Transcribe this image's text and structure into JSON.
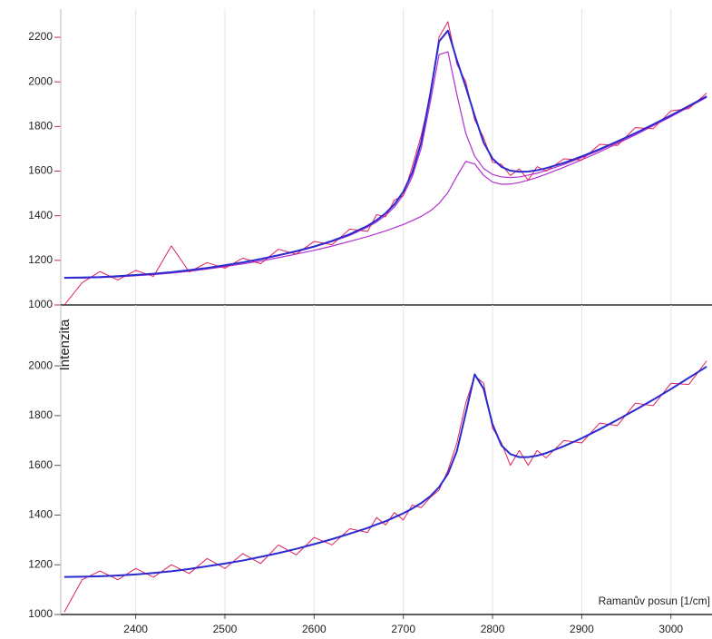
{
  "chart_data": [
    {
      "type": "line",
      "x": [
        2320,
        2340,
        2360,
        2380,
        2400,
        2420,
        2440,
        2460,
        2480,
        2500,
        2520,
        2540,
        2560,
        2580,
        2600,
        2620,
        2640,
        2660,
        2670,
        2680,
        2690,
        2700,
        2710,
        2720,
        2730,
        2740,
        2750,
        2760,
        2770,
        2780,
        2790,
        2800,
        2810,
        2820,
        2830,
        2840,
        2850,
        2860,
        2880,
        2900,
        2920,
        2940,
        2960,
        2980,
        3000,
        3020,
        3040
      ],
      "series": [
        {
          "color": "#b030d0",
          "width": 1.2,
          "values": [
            1122,
            1123,
            1125,
            1128,
            1133,
            1139,
            1146,
            1155,
            1165,
            1177,
            1190,
            1204,
            1221,
            1239,
            1260,
            1284,
            1312,
            1349,
            1372,
            1401,
            1439,
            1493,
            1574,
            1703,
            1904,
            2122,
            2135,
            1944,
            1769,
            1667,
            1612,
            1585,
            1574,
            1571,
            1574,
            1582,
            1591,
            1603,
            1630,
            1661,
            1694,
            1730,
            1768,
            1807,
            1848,
            1891,
            1934
          ]
        },
        {
          "color": "#b030d0",
          "width": 1.2,
          "values": [
            1120,
            1121,
            1123,
            1126,
            1131,
            1136,
            1143,
            1151,
            1161,
            1172,
            1184,
            1197,
            1212,
            1228,
            1245,
            1264,
            1285,
            1307,
            1319,
            1332,
            1346,
            1361,
            1378,
            1397,
            1421,
            1455,
            1504,
            1577,
            1644,
            1632,
            1581,
            1551,
            1541,
            1542,
            1549,
            1559,
            1572,
            1586,
            1617,
            1651,
            1686,
            1724,
            1762,
            1803,
            1844,
            1887,
            1931
          ]
        },
        {
          "color": "#e0205a",
          "width": 1,
          "values": [
            1000,
            1100,
            1150,
            1112,
            1155,
            1128,
            1265,
            1148,
            1190,
            1165,
            1210,
            1185,
            1250,
            1228,
            1285,
            1270,
            1340,
            1330,
            1405,
            1395,
            1470,
            1490,
            1620,
            1760,
            1930,
            2200,
            2270,
            2080,
            2000,
            1830,
            1750,
            1640,
            1630,
            1580,
            1610,
            1560,
            1620,
            1600,
            1655,
            1650,
            1720,
            1715,
            1795,
            1790,
            1870,
            1880,
            1950
          ]
        },
        {
          "color": "#2a2ad0",
          "width": 2,
          "values": [
            1122,
            1123,
            1125,
            1129,
            1134,
            1140,
            1147,
            1156,
            1166,
            1178,
            1191,
            1206,
            1223,
            1241,
            1262,
            1287,
            1317,
            1355,
            1380,
            1411,
            1451,
            1508,
            1593,
            1730,
            1942,
            2181,
            2230,
            2098,
            1977,
            1848,
            1728,
            1656,
            1619,
            1602,
            1597,
            1598,
            1604,
            1613,
            1637,
            1666,
            1698,
            1733,
            1770,
            1809,
            1850,
            1892,
            1935
          ]
        }
      ],
      "xlim": [
        2316,
        3046
      ],
      "ylim": [
        1000,
        2306
      ],
      "xticks": [
        2400,
        2500,
        2600,
        2700,
        2800,
        2900,
        3000
      ],
      "xtick_labels": false,
      "yticks": [
        1000,
        1200,
        1400,
        1600,
        1800,
        2000,
        2200
      ],
      "grid": true
    },
    {
      "type": "line",
      "x_label": "Ramanův posun [1/cm]",
      "y_label": "Intenzita",
      "x": [
        2320,
        2340,
        2360,
        2380,
        2400,
        2420,
        2440,
        2460,
        2480,
        2500,
        2520,
        2540,
        2560,
        2580,
        2600,
        2620,
        2640,
        2660,
        2670,
        2680,
        2690,
        2700,
        2710,
        2720,
        2730,
        2740,
        2750,
        2760,
        2770,
        2780,
        2790,
        2800,
        2810,
        2820,
        2830,
        2840,
        2850,
        2860,
        2880,
        2900,
        2920,
        2940,
        2960,
        2980,
        3000,
        3020,
        3040
      ],
      "series": [
        {
          "color": "#e0205a",
          "width": 1,
          "values": [
            1010,
            1140,
            1175,
            1140,
            1185,
            1150,
            1200,
            1165,
            1225,
            1185,
            1245,
            1205,
            1280,
            1240,
            1310,
            1280,
            1345,
            1330,
            1390,
            1360,
            1410,
            1380,
            1440,
            1430,
            1470,
            1500,
            1580,
            1690,
            1850,
            1960,
            1930,
            1750,
            1690,
            1600,
            1660,
            1600,
            1660,
            1630,
            1700,
            1690,
            1770,
            1760,
            1850,
            1840,
            1930,
            1925,
            2020
          ]
        },
        {
          "color": "#2a2ad0",
          "width": 2,
          "values": [
            1151,
            1152,
            1154,
            1157,
            1161,
            1167,
            1174,
            1183,
            1194,
            1205,
            1217,
            1232,
            1247,
            1264,
            1283,
            1303,
            1325,
            1348,
            1362,
            1375,
            1391,
            1407,
            1426,
            1448,
            1475,
            1512,
            1566,
            1657,
            1810,
            1966,
            1908,
            1765,
            1680,
            1645,
            1633,
            1633,
            1639,
            1649,
            1677,
            1709,
            1745,
            1783,
            1823,
            1864,
            1907,
            1952,
            1997
          ]
        }
      ],
      "xlim": [
        2316,
        3046
      ],
      "ylim": [
        1000,
        2245
      ],
      "xticks": [
        2400,
        2500,
        2600,
        2700,
        2800,
        2900,
        3000
      ],
      "xtick_labels": true,
      "yticks": [
        1000,
        1200,
        1400,
        1600,
        1800,
        2000
      ],
      "grid": true
    }
  ]
}
